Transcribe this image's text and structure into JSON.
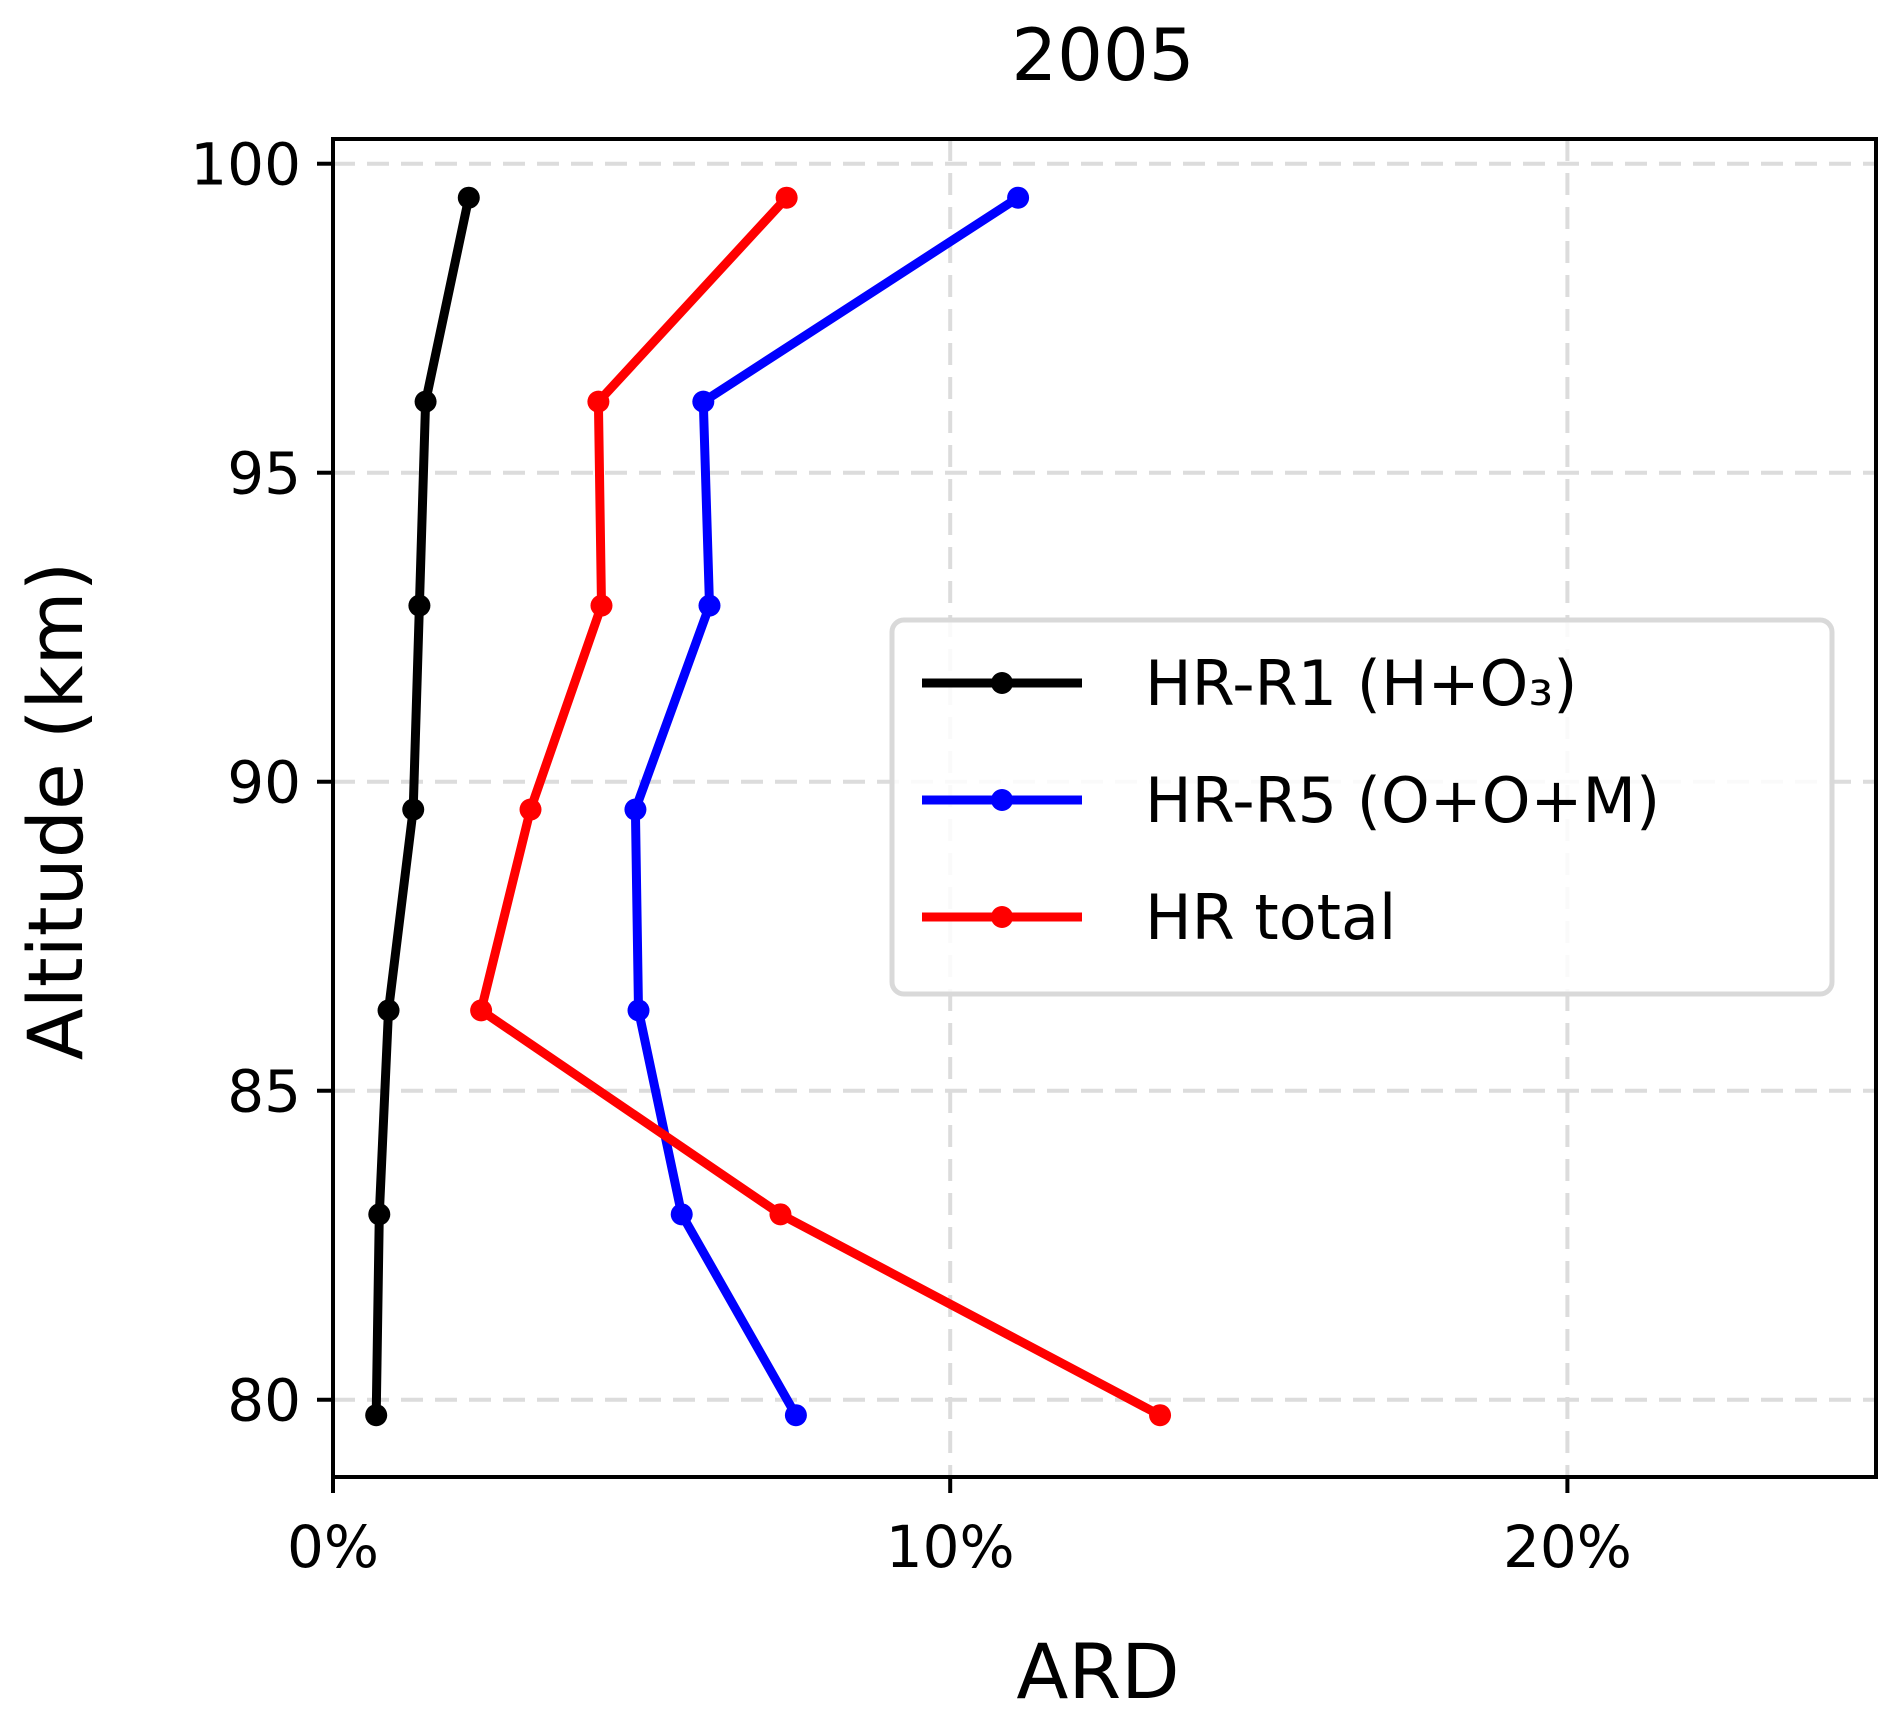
{
  "chart_data": {
    "type": "line",
    "title": "2005",
    "xlabel": "ARD",
    "ylabel": "Altitude (km)",
    "xlim": [
      0,
      25
    ],
    "ylim": [
      78.75,
      100.4
    ],
    "xticks": [
      0,
      10,
      20
    ],
    "xtick_labels": [
      "0%",
      "10%",
      "20%"
    ],
    "yticks": [
      80,
      85,
      90,
      95,
      100
    ],
    "ytick_labels": [
      "80",
      "85",
      "90",
      "95",
      "100"
    ],
    "grid": true,
    "legend_position": "right",
    "series": [
      {
        "name": "HR-R1 (H+O₃)",
        "color": "#000000",
        "x": [
          0.7,
          0.75,
          0.9,
          1.3,
          1.4,
          1.5,
          2.2
        ],
        "y": [
          79.75,
          83.0,
          86.3,
          89.55,
          92.85,
          96.15,
          99.45
        ]
      },
      {
        "name": "HR-R5 (O+O+M)",
        "color": "#0000ff",
        "x": [
          7.5,
          5.65,
          4.95,
          4.9,
          6.1,
          6.0,
          11.1
        ],
        "y": [
          79.75,
          83.0,
          86.3,
          89.55,
          92.85,
          96.15,
          99.45
        ]
      },
      {
        "name": "HR total",
        "color": "#ff0000",
        "x": [
          13.4,
          7.25,
          2.4,
          3.2,
          4.35,
          4.3,
          7.35
        ],
        "y": [
          79.75,
          83.0,
          86.3,
          89.55,
          92.85,
          96.15,
          99.45
        ]
      }
    ]
  }
}
